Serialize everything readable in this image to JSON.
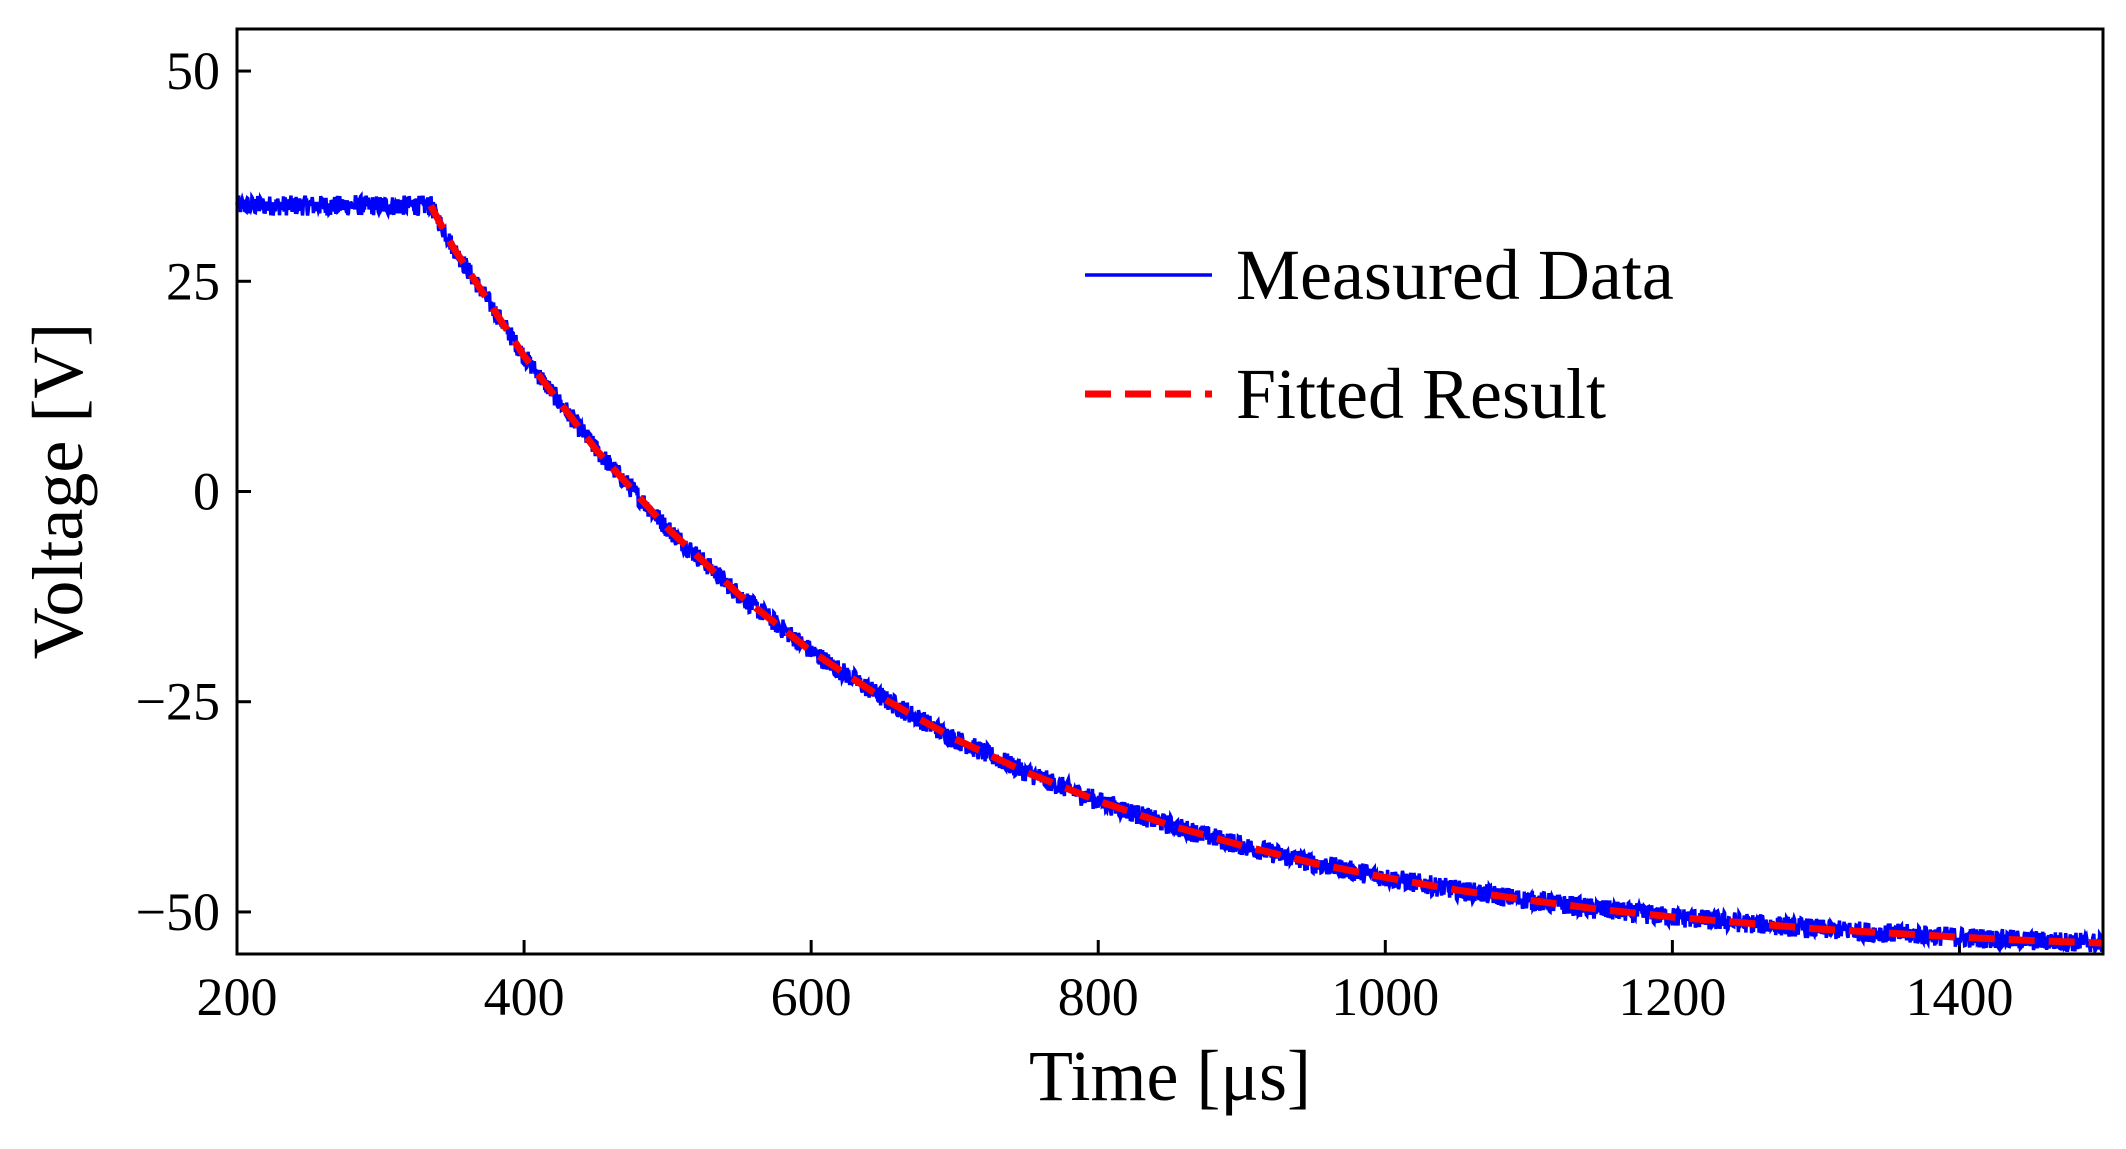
{
  "chart_data": {
    "type": "line",
    "title": "",
    "xlabel": "Time [μs]",
    "ylabel": "Voltage [V]",
    "xlim": [
      200,
      1500
    ],
    "ylim": [
      -55,
      55
    ],
    "xticks": [
      200,
      400,
      600,
      800,
      1000,
      1200,
      1400
    ],
    "yticks": [
      50,
      25,
      0,
      -25,
      -50
    ],
    "xtick_labels": [
      "200",
      "400",
      "600",
      "800",
      "1000",
      "1200",
      "1400"
    ],
    "ytick_labels": [
      "50",
      "25",
      "0",
      "−25",
      "−50"
    ],
    "grid": false,
    "legend_position": "upper-right",
    "series": [
      {
        "name": "Measured Data",
        "color": "#0000ff",
        "style": "solid",
        "noise_band": 1.2,
        "x": [
          200,
          335,
          350,
          400,
          450,
          500,
          550,
          600,
          650,
          700,
          750,
          800,
          850,
          900,
          950,
          1000,
          1050,
          1100,
          1150,
          1200,
          1250,
          1300,
          1350,
          1400,
          1450,
          1500
        ],
        "y": [
          34,
          34,
          29.2,
          16.1,
          5.0,
          -4.4,
          -12.3,
          -19.0,
          -24.6,
          -29.4,
          -33.4,
          -36.8,
          -39.7,
          -42.1,
          -44.2,
          -45.9,
          -47.4,
          -48.6,
          -49.7,
          -50.6,
          -51.3,
          -52.0,
          -52.5,
          -53.0,
          -53.4,
          -53.7
        ]
      },
      {
        "name": "Fitted Result",
        "color": "#ff0000",
        "style": "dashed",
        "x": [
          335,
          350,
          400,
          450,
          500,
          550,
          600,
          650,
          700,
          750,
          800,
          850,
          900,
          950,
          1000,
          1050,
          1100,
          1150,
          1200,
          1250,
          1300,
          1350,
          1400,
          1450,
          1500
        ],
        "y": [
          34,
          29.2,
          16.1,
          5.0,
          -4.4,
          -12.3,
          -19.0,
          -24.6,
          -29.4,
          -33.4,
          -36.8,
          -39.7,
          -42.1,
          -44.2,
          -45.9,
          -47.4,
          -48.6,
          -49.7,
          -50.6,
          -51.3,
          -52.0,
          -52.5,
          -53.0,
          -53.4,
          -53.7
        ]
      }
    ]
  }
}
